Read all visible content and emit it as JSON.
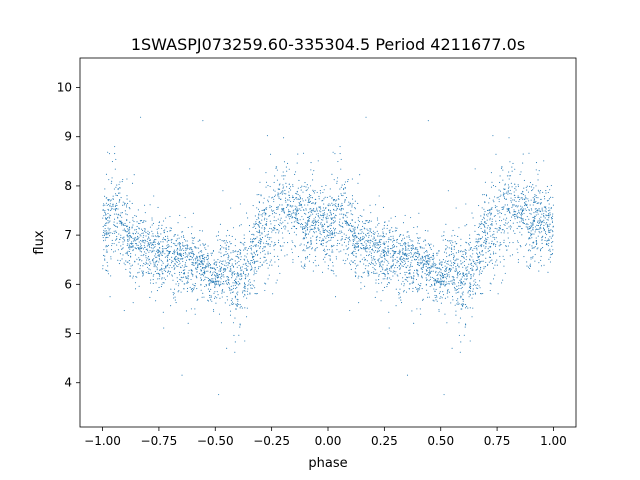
{
  "chart_data": {
    "type": "scatter",
    "title": "1SWASPJ073259.60-335304.5 Period 4211677.0s",
    "xlabel": "phase",
    "ylabel": "flux",
    "xlim": [
      -1.1,
      1.1
    ],
    "ylim": [
      3.1,
      10.6
    ],
    "xticks": [
      -1.0,
      -0.75,
      -0.5,
      -0.25,
      0.0,
      0.25,
      0.5,
      0.75,
      1.0
    ],
    "xtick_labels": [
      "−1.00",
      "−0.75",
      "−0.50",
      "−0.25",
      "0.00",
      "0.25",
      "0.50",
      "0.75",
      "1.00"
    ],
    "yticks": [
      4,
      5,
      6,
      7,
      8,
      9,
      10
    ],
    "ytick_labels": [
      "4",
      "5",
      "6",
      "7",
      "8",
      "9",
      "10"
    ],
    "grid": false,
    "legend": "none",
    "marker_color": "#1f77b4",
    "series": [
      {
        "profile": [
          [
            0.0,
            7.1,
            0.4
          ],
          [
            0.05,
            7.4,
            0.5
          ],
          [
            0.1,
            7.0,
            0.4
          ],
          [
            0.15,
            6.8,
            0.35
          ],
          [
            0.2,
            6.75,
            0.35
          ],
          [
            0.25,
            6.6,
            0.35
          ],
          [
            0.3,
            6.5,
            0.35
          ],
          [
            0.35,
            6.55,
            0.35
          ],
          [
            0.4,
            6.45,
            0.3
          ],
          [
            0.45,
            6.3,
            0.3
          ],
          [
            0.5,
            6.2,
            0.3
          ],
          [
            0.55,
            6.35,
            0.4
          ],
          [
            0.6,
            6.0,
            0.45
          ],
          [
            0.65,
            6.4,
            0.4
          ],
          [
            0.7,
            7.0,
            0.45
          ],
          [
            0.75,
            7.3,
            0.5
          ],
          [
            0.8,
            7.6,
            0.55
          ],
          [
            0.85,
            7.4,
            0.45
          ],
          [
            0.9,
            7.3,
            0.45
          ],
          [
            0.95,
            7.2,
            0.4
          ],
          [
            1.0,
            7.1,
            0.4
          ]
        ]
      }
    ]
  }
}
